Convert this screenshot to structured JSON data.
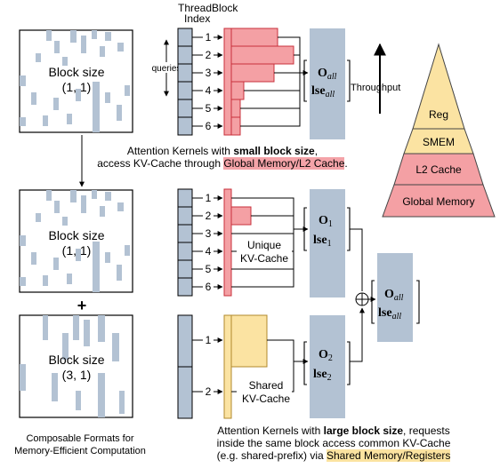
{
  "colors": {
    "matrix_block": "#b3c2d3",
    "panel": "#b3c2d3",
    "red_fill": "#f4a0a4",
    "red_stroke": "#c8303b",
    "yellow_fill": "#fbe3a2",
    "yellow_stroke": "#b08a2c",
    "pyramid_reg": "#fbe3a2",
    "pyramid_smem": "#fbe3a2",
    "pyramid_l2": "#f4a0a4",
    "pyramid_global": "#f4a0a4"
  },
  "header": {
    "threadblock_line1": "ThreadBlock",
    "threadblock_line2": "Index"
  },
  "top": {
    "block_label": "Block size",
    "block_dims": "(1, 1)",
    "queries_label": "queries",
    "indices": [
      "1",
      "2",
      "3",
      "4",
      "5",
      "6"
    ],
    "out_O": "O",
    "out_O_sub": "all",
    "out_lse": "lse",
    "out_lse_sub": "all",
    "throughput_label": "Throughput"
  },
  "pyramid": [
    "Reg",
    "SMEM",
    "L2 Cache",
    "Global Memory"
  ],
  "caption_small": {
    "pre": "Attention Kernels with ",
    "bold": "small block size",
    "post": ",",
    "line2_pre": "access KV-Cache through ",
    "highlight": "Global Memory/L2 Cache",
    "line2_post": "."
  },
  "middle": {
    "block_label": "Block size",
    "block_dims": "(1, 1)",
    "indices": [
      "1",
      "2",
      "3",
      "4",
      "5",
      "6"
    ],
    "kv_label_1": "Unique",
    "kv_label_2": "KV-Cache",
    "out_O": "O",
    "out_O_sub": "1",
    "out_lse": "lse",
    "out_lse_sub": "1"
  },
  "plus": "+",
  "oplus": "⊕",
  "merge": {
    "out_O": "O",
    "out_O_sub": "all",
    "out_lse": "lse",
    "out_lse_sub": "all"
  },
  "bottom": {
    "block_label": "Block size",
    "block_dims": "(3, 1)",
    "indices": [
      "1",
      "2"
    ],
    "kv_label_1": "Shared",
    "kv_label_2": "KV-Cache",
    "out_O": "O",
    "out_O_sub": "2",
    "out_lse": "lse",
    "out_lse_sub": "2"
  },
  "caption_composable": {
    "line1": "Composable Formats for",
    "line2": "Memory-Efficient Computation"
  },
  "caption_large": {
    "pre": "Attention Kernels with ",
    "bold": "large block size",
    "post": ", requests",
    "line2": "inside the same block access common KV-Cache",
    "line3_pre": "(e.g. shared-prefix) via ",
    "highlight": "Shared Memory/Registers"
  }
}
